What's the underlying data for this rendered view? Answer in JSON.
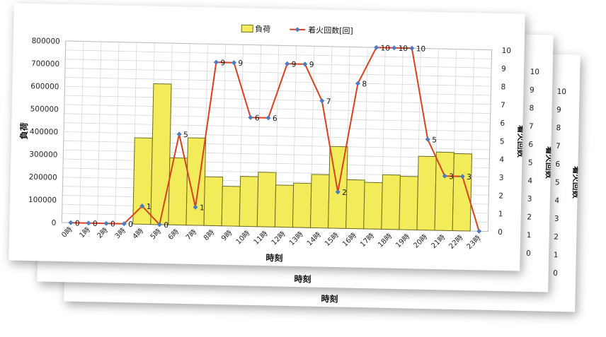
{
  "chart_data": {
    "type": "bar+line",
    "categories": [
      "0時",
      "1時",
      "2時",
      "3時",
      "4時",
      "5時",
      "6時",
      "7時",
      "8時",
      "9時",
      "10時",
      "11時",
      "12時",
      "13時",
      "14時",
      "15時",
      "16時",
      "17時",
      "18時",
      "19時",
      "20時",
      "21時",
      "22時",
      "23時"
    ],
    "series": [
      {
        "name": "負荷",
        "type": "bar",
        "axis": "left",
        "values": [
          0,
          0,
          0,
          0,
          380000,
          620000,
          295000,
          385000,
          215000,
          175000,
          220000,
          240000,
          185000,
          195000,
          235000,
          360000,
          215000,
          205000,
          240000,
          235000,
          325000,
          345000,
          340000,
          0
        ]
      },
      {
        "name": "着火回数[回]",
        "type": "line",
        "axis": "right",
        "values": [
          0,
          0,
          0,
          0,
          1,
          0,
          5,
          1,
          9,
          9,
          6,
          6,
          9,
          9,
          7,
          2,
          8,
          10,
          10,
          10,
          5,
          3,
          3,
          0
        ],
        "data_labels": [
          "0",
          "0",
          "0",
          "0",
          "1",
          "0",
          "5",
          "1",
          "9",
          "9",
          "6",
          "6",
          "9",
          "9",
          "7",
          "2",
          "8",
          "10",
          "10",
          "10",
          "5",
          "3",
          "3",
          ""
        ]
      }
    ],
    "xlabel": "時刻",
    "ylabel": "負荷",
    "ylabel_right": "着火回数",
    "ylim": [
      0,
      800000
    ],
    "ylim_right": [
      0,
      10
    ],
    "yticks": [
      "0",
      "100000",
      "200000",
      "300000",
      "400000",
      "500000",
      "600000",
      "700000",
      "800000"
    ],
    "yticks_right": [
      "0",
      "1",
      "2",
      "3",
      "4",
      "5",
      "6",
      "7",
      "8",
      "9",
      "10"
    ],
    "grid": true,
    "legend": "top",
    "colors": {
      "bar_fill": "#f2ec5a",
      "bar_stroke": "#6e6a22",
      "line": "#d9401e",
      "marker": "#4a7bc4",
      "grid": "#d8d8d8"
    },
    "behind_sheets": {
      "xlabel": "時刻",
      "ylabel_right": "着火回数",
      "yticks_right": [
        "0",
        "1",
        "2",
        "3",
        "4",
        "5",
        "6",
        "7",
        "8",
        "9",
        "10"
      ]
    }
  }
}
